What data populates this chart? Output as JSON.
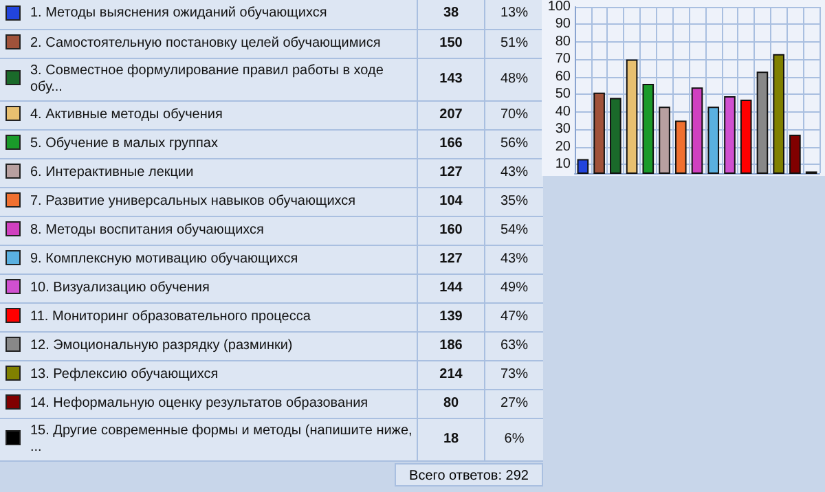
{
  "chart_data": [
    {
      "type": "other",
      "categories": [
        "1. Методы выяснения ожиданий обучающихся",
        "2. Самостоятельную постановку целей обучающимися",
        "3. Совместное формулирование правил работы в ходе обу...",
        "4. Активные методы обучения",
        "5. Обучение в малых группах",
        "6. Интерактивные лекции",
        "7. Развитие универсальных навыков обучающихся",
        "8. Методы воспитания обучающихся",
        "9. Комплексную мотивацию обучающихся",
        "10. Визуализацию обучения",
        "11. Мониторинг образовательного процесса",
        "12. Эмоциональную разрядку (разминки)",
        "13. Рефлексию обучающихся",
        "14. Неформальную оценку результатов образования",
        "15. Другие современные формы и методы (напишите ниже, ..."
      ],
      "colors": [
        "#2244dd",
        "#a0523a",
        "#1a6a2a",
        "#e8c070",
        "#1a9a2a",
        "#b8a0a0",
        "#f07030",
        "#d040c0",
        "#5ab0e0",
        "#d050d0",
        "#ff0000",
        "#888888",
        "#808000",
        "#800000",
        "#000000"
      ],
      "series": [
        {
          "values": [
            38,
            150,
            143,
            207,
            166,
            127,
            104,
            160,
            127,
            144,
            139,
            186,
            214,
            80,
            18
          ]
        },
        {
          "values": [
            13,
            51,
            48,
            70,
            56,
            43,
            35,
            54,
            43,
            49,
            47,
            63,
            73,
            27,
            6
          ],
          "value_labels": [
            "13%",
            "51%",
            "48%",
            "70%",
            "56%",
            "43%",
            "35%",
            "54%",
            "43%",
            "49%",
            "47%",
            "63%",
            "73%",
            "27%",
            "6%"
          ]
        }
      ],
      "data_labels": true,
      "annotations": [
        "Всего ответов: 292"
      ]
    },
    {
      "type": "bar",
      "categories": [
        null,
        null,
        null,
        null,
        null,
        null,
        null,
        null,
        null,
        null,
        null,
        null,
        null,
        null,
        null
      ],
      "values": [
        13,
        51,
        48,
        70,
        56,
        43,
        35,
        54,
        43,
        49,
        47,
        63,
        73,
        27,
        6
      ],
      "colors": [
        "#2244dd",
        "#a0523a",
        "#1a6a2a",
        "#e8c070",
        "#1a9a2a",
        "#b8a0a0",
        "#f07030",
        "#d040c0",
        "#5ab0e0",
        "#d050d0",
        "#ff0000",
        "#888888",
        "#808000",
        "#800000",
        "#000000"
      ],
      "ylim": [
        5,
        100
      ],
      "yticks": [
        10,
        20,
        30,
        40,
        50,
        60,
        70,
        80,
        90,
        100
      ],
      "grid": true,
      "tick_labels": "y"
    }
  ]
}
